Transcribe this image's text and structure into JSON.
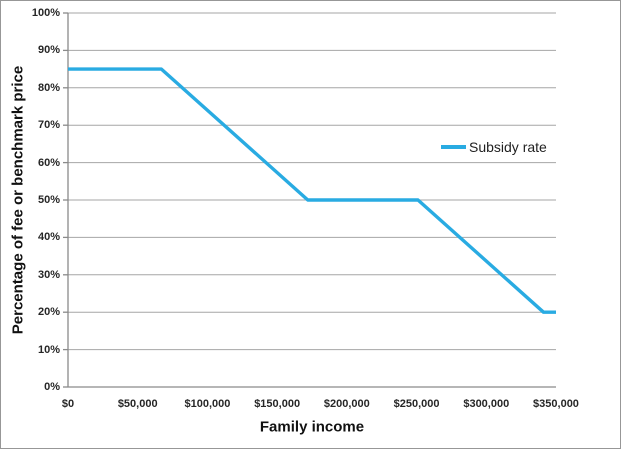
{
  "colors": {
    "line": "#29ABE2",
    "gridline": "#A6A6A6",
    "axis": "#8A8A8A",
    "tick_label": "#262626",
    "axis_title": "#111111",
    "legend_text": "#1F1F1F",
    "chart_border": "#979797",
    "background": "#FFFFFF"
  },
  "chart_data": {
    "type": "line",
    "title": "",
    "xlabel": "Family income",
    "ylabel": "Percentage of fee or benchmark price",
    "xlim": [
      0,
      350000
    ],
    "ylim": [
      0,
      100
    ],
    "grid": true,
    "legend_position": "inside-center-right",
    "x_tick_values": [
      0,
      50000,
      100000,
      150000,
      200000,
      250000,
      300000,
      350000
    ],
    "x_tick_labels": [
      "$0",
      "$50,000",
      "$100,000",
      "$150,000",
      "$200,000",
      "$250,000",
      "$300,000",
      "$350,000"
    ],
    "y_tick_values": [
      0,
      10,
      20,
      30,
      40,
      50,
      60,
      70,
      80,
      90,
      100
    ],
    "y_tick_labels": [
      "0%",
      "10%",
      "20%",
      "30%",
      "40%",
      "50%",
      "60%",
      "70%",
      "80%",
      "90%",
      "100%"
    ],
    "series": [
      {
        "name": "Subsidy rate",
        "color": "#29ABE2",
        "points": [
          [
            0,
            85
          ],
          [
            67000,
            85
          ],
          [
            172000,
            50
          ],
          [
            251000,
            50
          ],
          [
            341000,
            20
          ],
          [
            350000,
            20
          ]
        ]
      }
    ]
  }
}
